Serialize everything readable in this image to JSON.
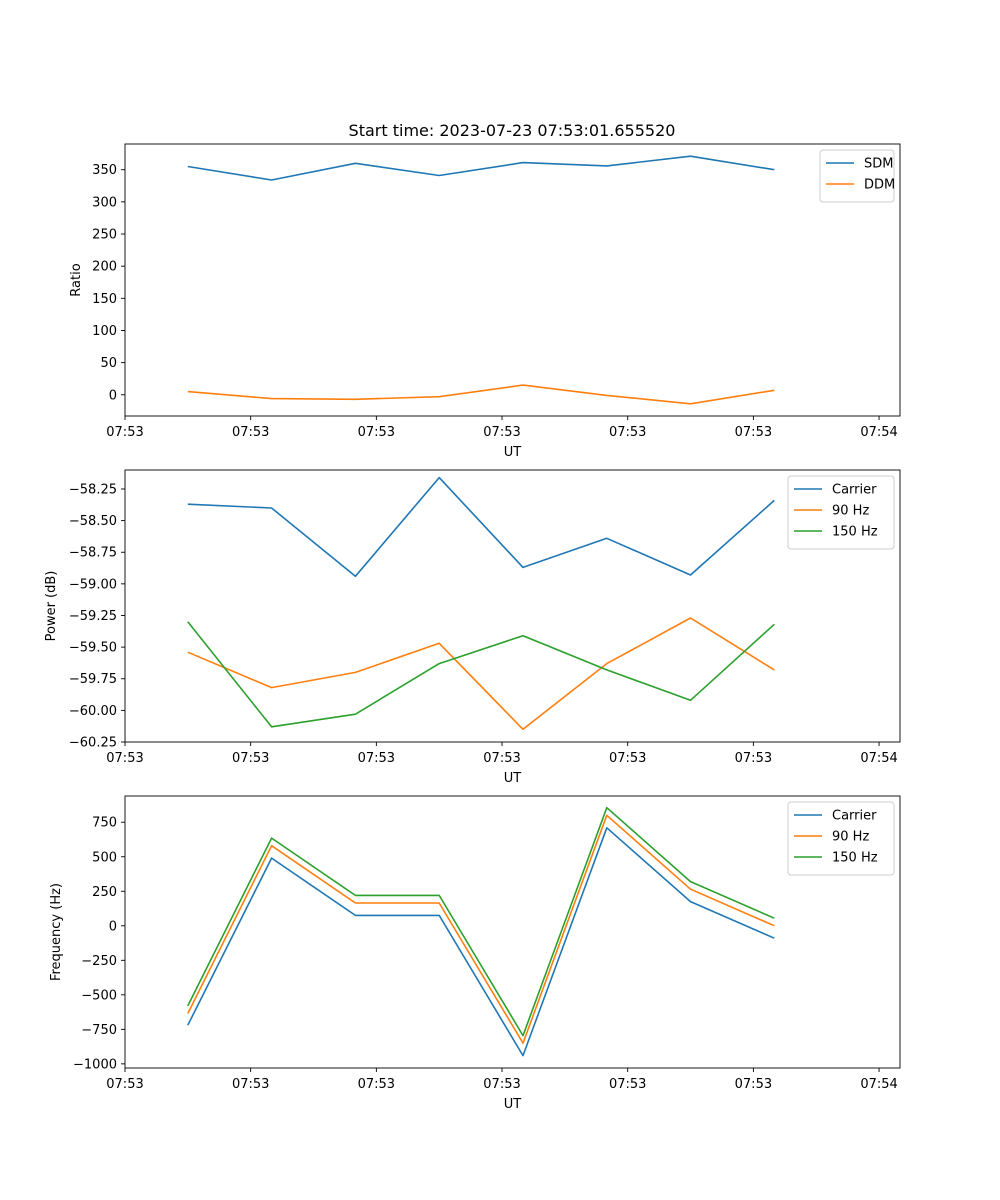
{
  "title": "Start time: 2023-07-23 07:53:01.655520",
  "colors": {
    "c0": "#1f77b4",
    "c1": "#ff7f0e",
    "c2": "#2ca02c"
  },
  "chart_data": [
    {
      "type": "line",
      "title": "Start time: 2023-07-23 07:53:01.655520",
      "xlabel": "UT",
      "ylabel": "Ratio",
      "xlim": [
        -0.75,
        8.5
      ],
      "ylim": [
        -33,
        390
      ],
      "x": [
        0,
        1,
        2,
        3,
        4,
        5,
        6,
        7
      ],
      "xticks": [
        -0.75,
        0.75,
        2.25,
        3.75,
        5.25,
        6.75,
        8.25
      ],
      "xtick_labels": [
        "07:53",
        "07:53",
        "07:53",
        "07:53",
        "07:53",
        "07:53",
        "07:54"
      ],
      "yticks": [
        0,
        50,
        100,
        150,
        200,
        250,
        300,
        350
      ],
      "ytick_labels": [
        "0",
        "50",
        "100",
        "150",
        "200",
        "250",
        "300",
        "350"
      ],
      "legend_position": "top-right",
      "series": [
        {
          "name": "SDM",
          "color": "#1f77b4",
          "values": [
            355,
            334,
            360,
            341,
            361,
            356,
            371,
            350
          ]
        },
        {
          "name": "DDM",
          "color": "#ff7f0e",
          "values": [
            5,
            -6,
            -7,
            -3,
            15,
            -1,
            -14,
            7
          ]
        }
      ]
    },
    {
      "type": "line",
      "xlabel": "UT",
      "ylabel": "Power (dB)",
      "xlim": [
        -0.75,
        8.5
      ],
      "ylim": [
        -60.25,
        -58.1
      ],
      "x": [
        0,
        1,
        2,
        3,
        4,
        5,
        6,
        7
      ],
      "xticks": [
        -0.75,
        0.75,
        2.25,
        3.75,
        5.25,
        6.75,
        8.25
      ],
      "xtick_labels": [
        "07:53",
        "07:53",
        "07:53",
        "07:53",
        "07:53",
        "07:53",
        "07:54"
      ],
      "yticks": [
        -60.25,
        -60.0,
        -59.75,
        -59.5,
        -59.25,
        -59.0,
        -58.75,
        -58.5,
        -58.25
      ],
      "ytick_labels": [
        "−60.25",
        "−60.00",
        "−59.75",
        "−59.50",
        "−59.25",
        "−59.00",
        "−58.75",
        "−58.50",
        "−58.25"
      ],
      "legend_position": "top-right",
      "series": [
        {
          "name": "Carrier",
          "color": "#1f77b4",
          "values": [
            -58.37,
            -58.4,
            -58.94,
            -58.16,
            -58.87,
            -58.64,
            -58.93,
            -58.34
          ]
        },
        {
          "name": "90 Hz",
          "color": "#ff7f0e",
          "values": [
            -59.54,
            -59.82,
            -59.7,
            -59.47,
            -60.15,
            -59.63,
            -59.27,
            -59.68
          ]
        },
        {
          "name": "150 Hz",
          "color": "#2ca02c",
          "values": [
            -59.3,
            -60.13,
            -60.03,
            -59.63,
            -59.41,
            -59.68,
            -59.92,
            -59.32
          ]
        }
      ]
    },
    {
      "type": "line",
      "xlabel": "UT",
      "ylabel": "Frequency (Hz)",
      "xlim": [
        -0.75,
        8.5
      ],
      "ylim": [
        -1030,
        940
      ],
      "x": [
        0,
        1,
        2,
        3,
        4,
        5,
        6,
        7
      ],
      "xticks": [
        -0.75,
        0.75,
        2.25,
        3.75,
        5.25,
        6.75,
        8.25
      ],
      "xtick_labels": [
        "07:53",
        "07:53",
        "07:53",
        "07:53",
        "07:53",
        "07:53",
        "07:54"
      ],
      "yticks": [
        -1000,
        -750,
        -500,
        -250,
        0,
        250,
        500,
        750
      ],
      "ytick_labels": [
        "−1000",
        "−750",
        "−500",
        "−250",
        "0",
        "250",
        "500",
        "750"
      ],
      "legend_position": "top-right",
      "series": [
        {
          "name": "Carrier",
          "color": "#1f77b4",
          "values": [
            -720,
            490,
            75,
            75,
            -940,
            710,
            175,
            -90
          ]
        },
        {
          "name": "90 Hz",
          "color": "#ff7f0e",
          "values": [
            -635,
            580,
            165,
            165,
            -850,
            800,
            265,
            0
          ]
        },
        {
          "name": "150 Hz",
          "color": "#2ca02c",
          "values": [
            -580,
            635,
            220,
            220,
            -795,
            855,
            320,
            55
          ]
        }
      ]
    }
  ]
}
